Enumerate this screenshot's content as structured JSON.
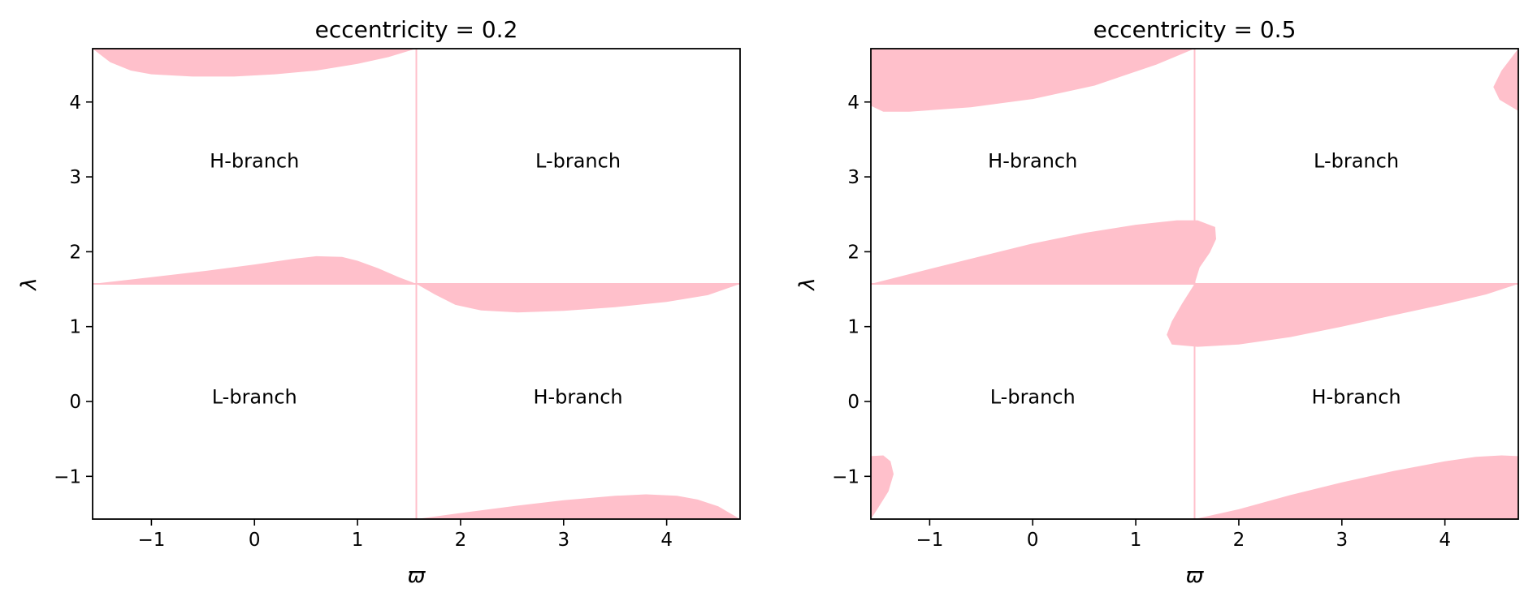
{
  "colors": {
    "fill": "#ffc0cb",
    "boundary": "#ffc0cb",
    "axis": "#000000"
  },
  "chart_data": [
    {
      "type": "area",
      "title": "eccentricity = 0.2",
      "xlabel": "ϖ",
      "ylabel": "λ",
      "xlim": [
        -1.5708,
        4.7124
      ],
      "ylim": [
        -1.5708,
        4.7124
      ],
      "xticks": [
        -1,
        0,
        1,
        2,
        3,
        4
      ],
      "yticks": [
        -1,
        0,
        1,
        2,
        3,
        4
      ],
      "xtick_labels": [
        "−1",
        "0",
        "1",
        "2",
        "3",
        "4"
      ],
      "ytick_labels": [
        "−1",
        "0",
        "1",
        "2",
        "3",
        "4"
      ],
      "boundary_lines": [
        {
          "orientation": "vertical",
          "x": 1.5708
        },
        {
          "orientation": "horizontal",
          "y": 1.5708
        }
      ],
      "annotations": [
        {
          "text": "H-branch",
          "x": 0.0,
          "y": 3.2
        },
        {
          "text": "L-branch",
          "x": 3.14,
          "y": 3.2
        },
        {
          "text": "L-branch",
          "x": 0.0,
          "y": 0.05
        },
        {
          "text": "H-branch",
          "x": 3.14,
          "y": 0.05
        }
      ],
      "regions": [
        {
          "points": [
            [
              -1.5708,
              4.7124
            ],
            [
              -1.4,
              4.53
            ],
            [
              -1.2,
              4.42
            ],
            [
              -1.0,
              4.37
            ],
            [
              -0.6,
              4.34
            ],
            [
              -0.2,
              4.34
            ],
            [
              0.2,
              4.37
            ],
            [
              0.6,
              4.42
            ],
            [
              1.0,
              4.51
            ],
            [
              1.3,
              4.6
            ],
            [
              1.5708,
              4.7124
            ]
          ]
        },
        {
          "points": [
            [
              -1.5708,
              1.5708
            ],
            [
              -1.0,
              1.66
            ],
            [
              -0.5,
              1.74
            ],
            [
              0.0,
              1.83
            ],
            [
              0.4,
              1.91
            ],
            [
              0.6,
              1.94
            ],
            [
              0.85,
              1.93
            ],
            [
              1.0,
              1.88
            ],
            [
              1.2,
              1.78
            ],
            [
              1.4,
              1.66
            ],
            [
              1.5708,
              1.5708
            ]
          ]
        },
        {
          "points": [
            [
              1.5708,
              1.5708
            ],
            [
              1.75,
              1.43
            ],
            [
              1.95,
              1.29
            ],
            [
              2.2,
              1.215
            ],
            [
              2.55,
              1.19
            ],
            [
              3.0,
              1.21
            ],
            [
              3.5,
              1.26
            ],
            [
              4.0,
              1.33
            ],
            [
              4.4,
              1.42
            ],
            [
              4.7124,
              1.5708
            ]
          ]
        },
        {
          "points": [
            [
              1.5708,
              -1.5708
            ],
            [
              2.0,
              -1.49
            ],
            [
              2.5,
              -1.4
            ],
            [
              3.0,
              -1.32
            ],
            [
              3.5,
              -1.26
            ],
            [
              3.8,
              -1.24
            ],
            [
              4.1,
              -1.26
            ],
            [
              4.3,
              -1.31
            ],
            [
              4.5,
              -1.4
            ],
            [
              4.7124,
              -1.5708
            ]
          ]
        }
      ]
    },
    {
      "type": "area",
      "title": "eccentricity = 0.5",
      "xlabel": "ϖ",
      "ylabel": "λ",
      "xlim": [
        -1.5708,
        4.7124
      ],
      "ylim": [
        -1.5708,
        4.7124
      ],
      "xticks": [
        -1,
        0,
        1,
        2,
        3,
        4
      ],
      "yticks": [
        -1,
        0,
        1,
        2,
        3,
        4
      ],
      "xtick_labels": [
        "−1",
        "0",
        "1",
        "2",
        "3",
        "4"
      ],
      "ytick_labels": [
        "−1",
        "0",
        "1",
        "2",
        "3",
        "4"
      ],
      "boundary_lines": [
        {
          "orientation": "vertical",
          "x": 1.5708
        },
        {
          "orientation": "horizontal",
          "y": 1.5708
        }
      ],
      "annotations": [
        {
          "text": "H-branch",
          "x": 0.0,
          "y": 3.2
        },
        {
          "text": "L-branch",
          "x": 3.14,
          "y": 3.2
        },
        {
          "text": "L-branch",
          "x": 0.0,
          "y": 0.05
        },
        {
          "text": "H-branch",
          "x": 3.14,
          "y": 0.05
        }
      ],
      "regions": [
        {
          "points": [
            [
              -1.5708,
              4.7124
            ],
            [
              -1.5708,
              3.95
            ],
            [
              -1.45,
              3.87
            ],
            [
              -1.2,
              3.87
            ],
            [
              -0.6,
              3.93
            ],
            [
              0.0,
              4.04
            ],
            [
              0.6,
              4.22
            ],
            [
              1.2,
              4.5
            ],
            [
              1.5708,
              4.7124
            ]
          ]
        },
        {
          "points": [
            [
              -1.5708,
              1.5708
            ],
            [
              -1.0,
              1.77
            ],
            [
              -0.5,
              1.94
            ],
            [
              0.0,
              2.11
            ],
            [
              0.5,
              2.25
            ],
            [
              1.0,
              2.36
            ],
            [
              1.4,
              2.42
            ],
            [
              1.6,
              2.42
            ],
            [
              1.77,
              2.33
            ],
            [
              1.78,
              2.17
            ],
            [
              1.72,
              1.99
            ],
            [
              1.62,
              1.79
            ],
            [
              1.5708,
              1.5708
            ]
          ]
        },
        {
          "points": [
            [
              1.5708,
              1.5708
            ],
            [
              4.7124,
              1.5708
            ],
            [
              4.4,
              1.43
            ],
            [
              4.0,
              1.3
            ],
            [
              3.5,
              1.15
            ],
            [
              3.0,
              1.0
            ],
            [
              2.5,
              0.86
            ],
            [
              2.0,
              0.76
            ],
            [
              1.6,
              0.73
            ],
            [
              1.35,
              0.76
            ],
            [
              1.3,
              0.89
            ],
            [
              1.35,
              1.07
            ],
            [
              1.45,
              1.31
            ],
            [
              1.5708,
              1.5708
            ]
          ]
        },
        {
          "points": [
            [
              4.7124,
              4.7124
            ],
            [
              4.55,
              4.42
            ],
            [
              4.47,
              4.2
            ],
            [
              4.53,
              4.03
            ],
            [
              4.7124,
              3.88
            ]
          ]
        },
        {
          "points": [
            [
              1.5708,
              -1.5708
            ],
            [
              2.0,
              -1.44
            ],
            [
              2.5,
              -1.25
            ],
            [
              3.0,
              -1.08
            ],
            [
              3.5,
              -0.93
            ],
            [
              4.0,
              -0.8
            ],
            [
              4.3,
              -0.74
            ],
            [
              4.55,
              -0.72
            ],
            [
              4.7124,
              -0.73
            ],
            [
              4.7124,
              -1.5708
            ]
          ]
        },
        {
          "points": [
            [
              -1.5708,
              -1.5708
            ],
            [
              -1.5708,
              -0.73
            ],
            [
              -1.45,
              -0.72
            ],
            [
              -1.38,
              -0.8
            ],
            [
              -1.35,
              -0.97
            ],
            [
              -1.4,
              -1.2
            ],
            [
              -1.5,
              -1.42
            ],
            [
              -1.5708,
              -1.5708
            ]
          ]
        }
      ]
    }
  ]
}
